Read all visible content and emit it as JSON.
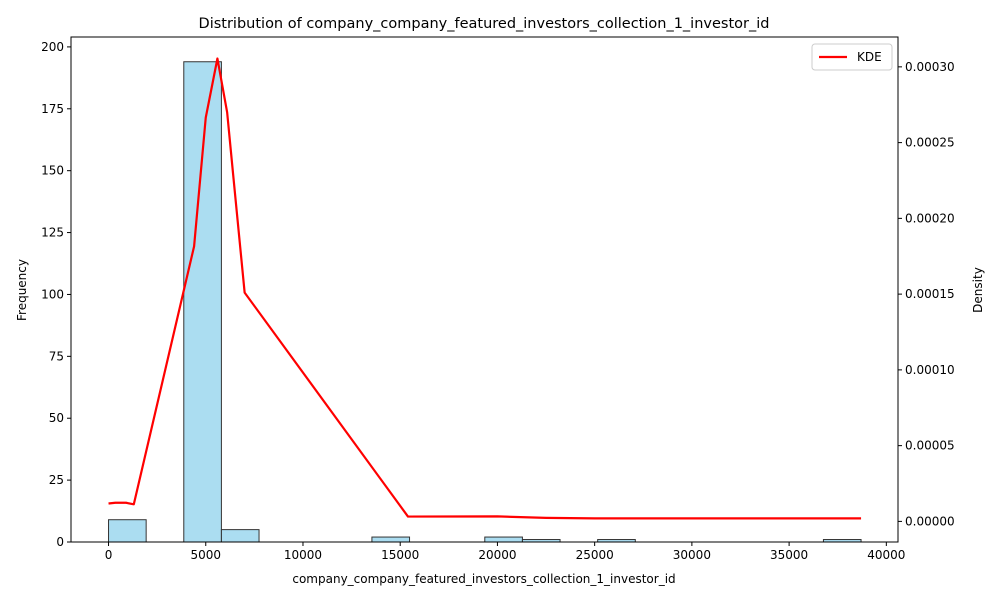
{
  "chart_data": {
    "type": "bar",
    "title": "Distribution of company_company_featured_investors_collection_1_investor_id",
    "xlabel": "company_company_featured_investors_collection_1_investor_id",
    "ylabel": "Frequency",
    "y2label": "Density",
    "xlim": [
      -1930,
      40600
    ],
    "ylim": [
      0,
      204
    ],
    "y2lim": [
      -1.36e-05,
      0.0003197
    ],
    "x_ticks": [
      0,
      5000,
      10000,
      15000,
      20000,
      25000,
      30000,
      35000,
      40000
    ],
    "y_ticks": [
      0,
      25,
      50,
      75,
      100,
      125,
      150,
      175,
      200
    ],
    "y2_ticks": [
      0.0,
      5e-05,
      0.0001,
      0.00015,
      0.0002,
      0.00025,
      0.0003
    ],
    "y2_tick_labels": [
      "0.00000",
      "0.00005",
      "0.00010",
      "0.00015",
      "0.00020",
      "0.00025",
      "0.00030"
    ],
    "grid": false,
    "legend_position": "top-right",
    "histogram": {
      "bin_edges": [
        0,
        1935,
        3870,
        5805,
        7740,
        9675,
        11610,
        13545,
        15480,
        17415,
        19350,
        21285,
        23220,
        25155,
        27090,
        29025,
        30960,
        32895,
        34830,
        36765,
        38700
      ],
      "counts": [
        9,
        0,
        194,
        5,
        0,
        0,
        0,
        2,
        0,
        0,
        2,
        1,
        0,
        1,
        0,
        0,
        0,
        0,
        0,
        1
      ],
      "color": "#87ceeb",
      "edge_color": "#333333"
    },
    "series": [
      {
        "name": "KDE",
        "color": "#ff0000",
        "x": [
          0,
          350,
          900,
          1300,
          4400,
          5000,
          5600,
          6100,
          6400,
          7000,
          15400,
          20000,
          22500,
          25000,
          30000,
          35000,
          38700
        ],
        "y": [
          1.18e-05,
          1.23e-05,
          1.23e-05,
          1.13e-05,
          0.0001815,
          0.0002665,
          0.0003055,
          0.00027,
          0.00023,
          0.000151,
          3.2e-06,
          3.3e-06,
          2.3e-06,
          2e-06,
          2e-06,
          2e-06,
          2e-06
        ]
      }
    ]
  }
}
